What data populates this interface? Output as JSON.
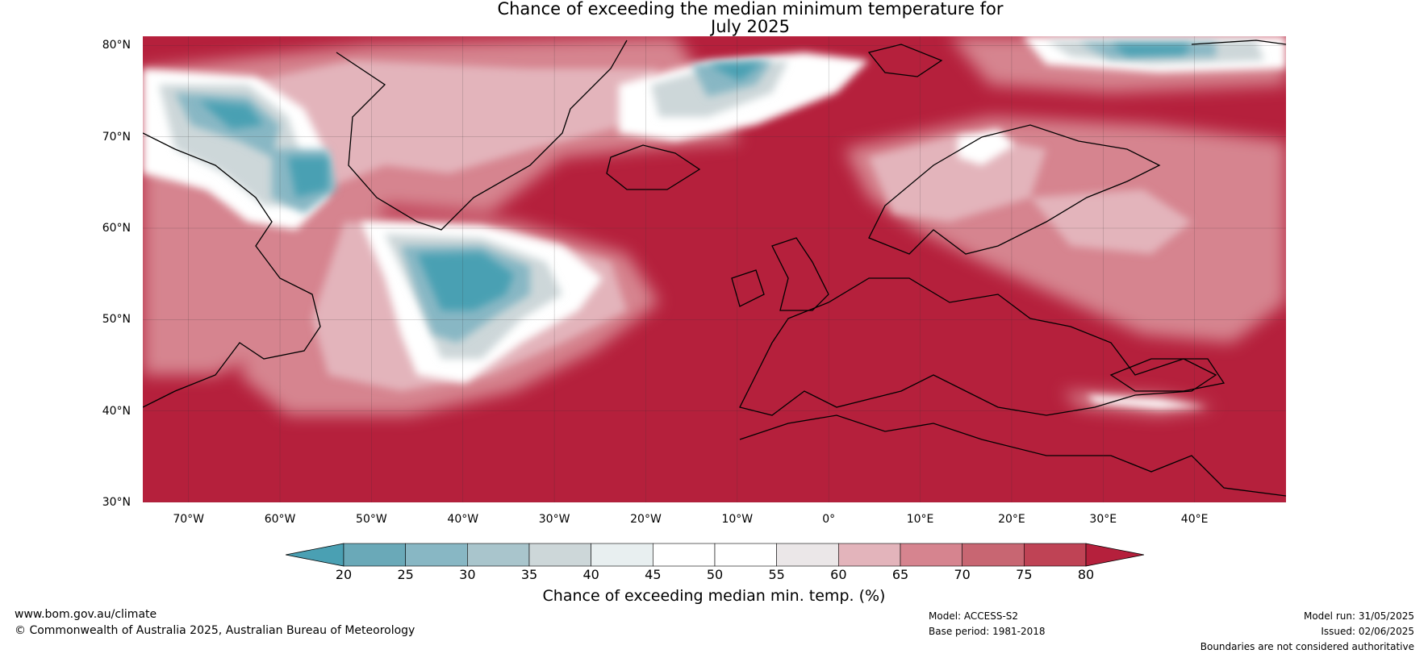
{
  "title": {
    "line1": "Chance of exceeding the median minimum temperature for",
    "line2": "July 2025"
  },
  "map": {
    "region": "North Atlantic and Europe",
    "lat_range": [
      30,
      81
    ],
    "lon_range": [
      -75,
      50
    ],
    "lat_ticks": [
      "80°N",
      "70°N",
      "60°N",
      "50°N",
      "40°N",
      "30°N"
    ],
    "lat_values": [
      80,
      70,
      60,
      50,
      40,
      30
    ],
    "lon_ticks": [
      "70°W",
      "60°W",
      "50°W",
      "40°W",
      "30°W",
      "20°W",
      "10°W",
      "0°",
      "10°E",
      "20°E",
      "30°E",
      "40°E"
    ],
    "lon_values": [
      -70,
      -60,
      -50,
      -40,
      -30,
      -20,
      -10,
      0,
      10,
      20,
      30,
      40
    ],
    "colors": {
      "ocean_dominant": "#b5203c",
      "land_border": "#000000",
      "country_border": "#808080"
    }
  },
  "colorbar": {
    "ticks": [
      "20",
      "25",
      "30",
      "35",
      "40",
      "45",
      "50",
      "55",
      "60",
      "65",
      "70",
      "75",
      "80"
    ],
    "colors": [
      "#4aa0b3",
      "#6aa9b8",
      "#88b7c4",
      "#a9c5cc",
      "#cdd7d9",
      "#e8eff0",
      "#ffffff",
      "#ffffff",
      "#ebe7e8",
      "#e3b4bb",
      "#d6848f",
      "#c86672",
      "#bf4355",
      "#b5203c"
    ],
    "label": "Chance of exceeding median min. temp. (%)"
  },
  "footer": {
    "url": "www.bom.gov.au/climate",
    "copyright": "© Commonwealth of Australia 2025, Australian Bureau of Meteorology",
    "model": "Model: ACCESS-S2",
    "base_period": "Base period: 1981-2018",
    "model_run": "Model run: 31/05/2025",
    "issued": "Issued: 02/06/2025",
    "disclaimer": "Boundaries are not considered authoritative"
  }
}
